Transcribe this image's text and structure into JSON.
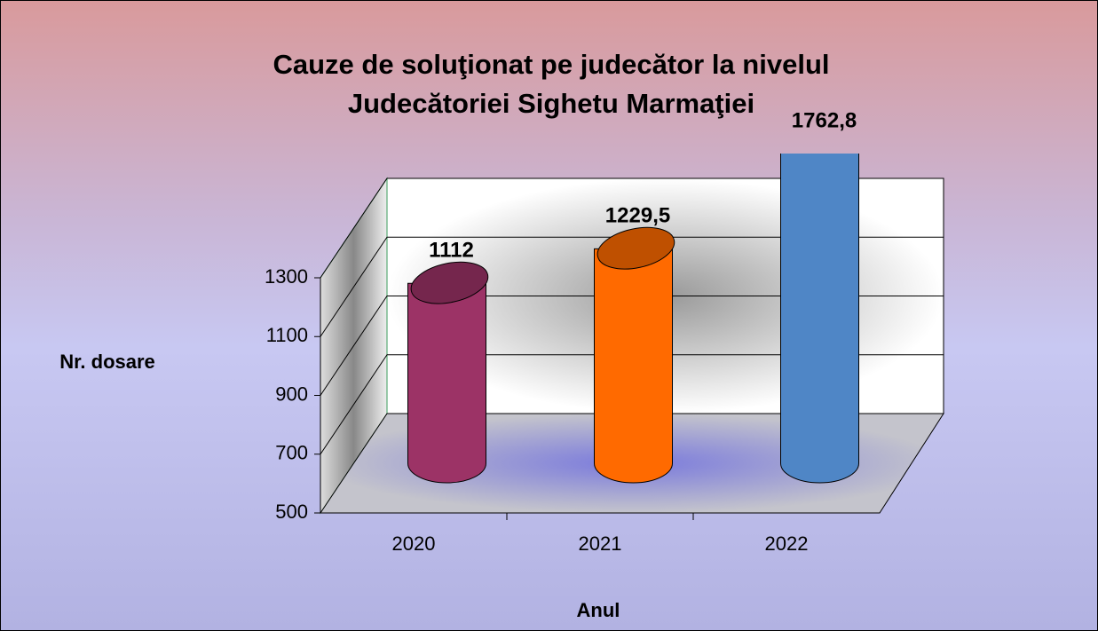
{
  "chart_data": {
    "type": "bar3d",
    "title": "Cauze de soluţionat pe judecător la nivelul Judecătoriei Sighetu Marmaţiei",
    "y_label": "Nr. dosare",
    "x_label": "Anul",
    "categories": [
      "2020",
      "2021",
      "2022"
    ],
    "values": [
      1112,
      1229.5,
      1762.8
    ],
    "value_labels": [
      "1112",
      "1229,5",
      "1762,8"
    ],
    "colors": [
      "#9c3366",
      "#ff6a00",
      "#4f86c6"
    ],
    "ylim": [
      500,
      1300
    ],
    "yticks": [
      500,
      700,
      900,
      1100,
      1300
    ],
    "grid": true
  }
}
